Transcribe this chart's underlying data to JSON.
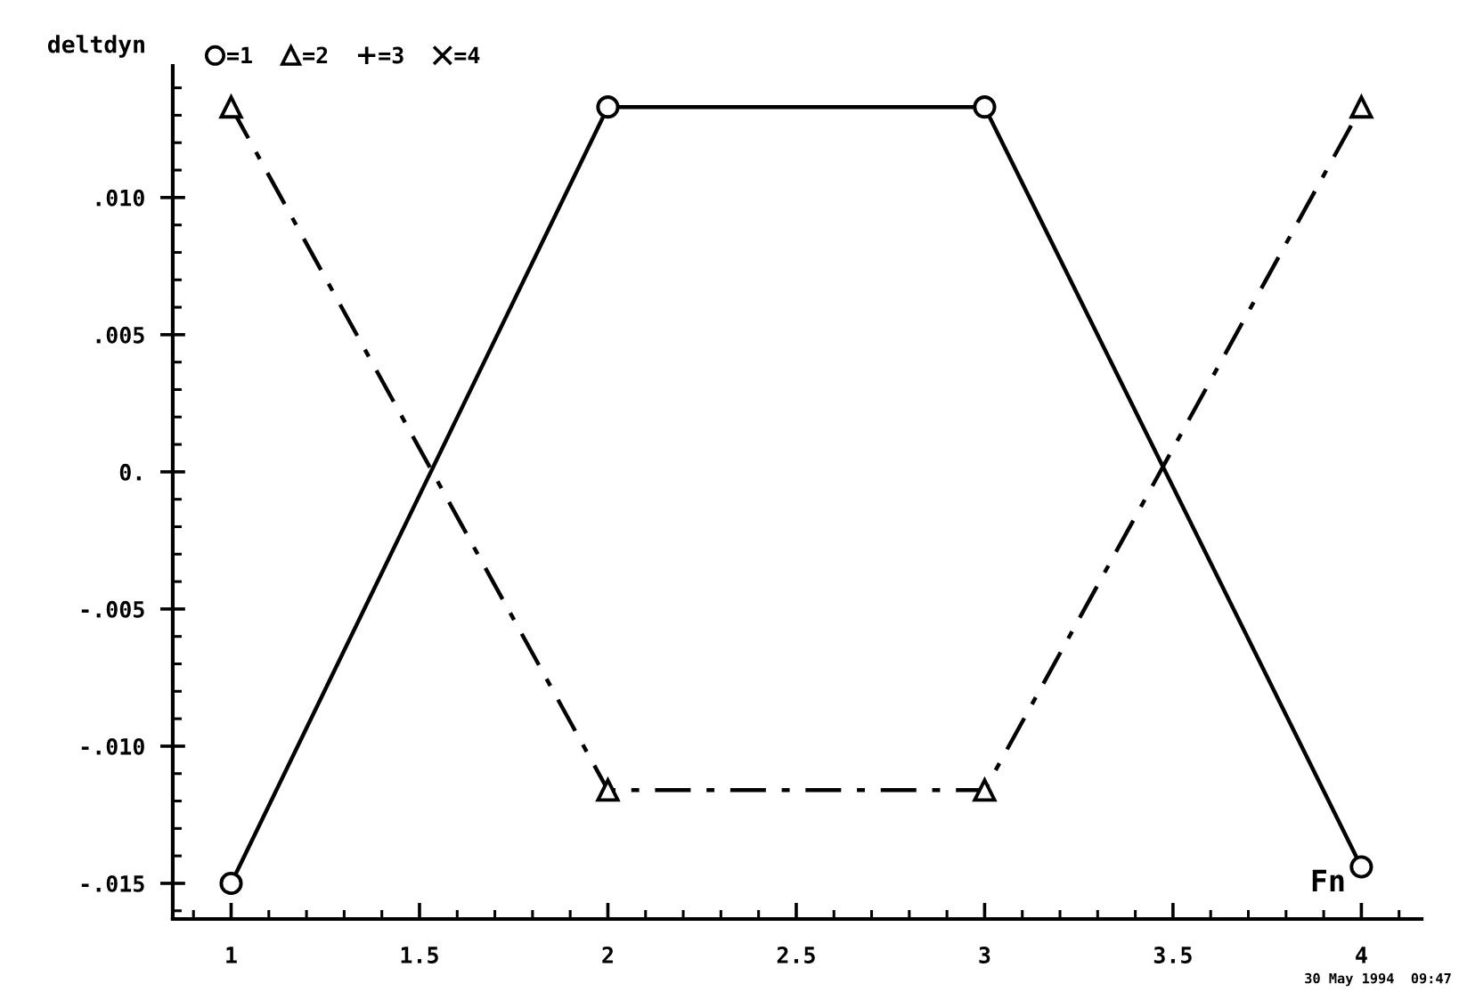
{
  "chart_data": {
    "type": "line",
    "xlabel": "Fn",
    "ylabel": "deltdyn",
    "annotations": [
      "30 May 1994  09:47"
    ],
    "x": [
      1,
      2,
      3,
      4
    ],
    "series": [
      {
        "name": "=1",
        "color": "#000000",
        "marker": "circle",
        "line_style": "solid",
        "values": [
          -0.015,
          0.0133,
          0.0133,
          -0.0144
        ]
      },
      {
        "name": "=2",
        "color": "#000000",
        "marker": "triangle",
        "line_style": "dashed",
        "values": [
          0.0133,
          -0.0116,
          -0.0116,
          0.0133
        ]
      },
      {
        "name": "=3",
        "type": "scatter",
        "color": "#000000",
        "marker": "cross",
        "values": [
          null,
          null,
          null,
          null
        ]
      },
      {
        "name": "=4",
        "type": "scatter",
        "color": "#000000",
        "marker": "x",
        "values": [
          null,
          null,
          null,
          null
        ]
      }
    ],
    "xlim": [
      0.845,
      4.16
    ],
    "xticks": [
      {
        "value": 0.9,
        "label": null
      },
      1,
      {
        "value": 1.1,
        "label": null
      },
      {
        "value": 1.2,
        "label": null
      },
      {
        "value": 1.3,
        "label": null
      },
      {
        "value": 1.4,
        "label": null
      },
      1.5,
      {
        "value": 1.6,
        "label": null
      },
      {
        "value": 1.7,
        "label": null
      },
      {
        "value": 1.8,
        "label": null
      },
      {
        "value": 1.9,
        "label": null
      },
      2,
      {
        "value": 2.1,
        "label": null
      },
      {
        "value": 2.2,
        "label": null
      },
      {
        "value": 2.3,
        "label": null
      },
      {
        "value": 2.4,
        "label": null
      },
      2.5,
      {
        "value": 2.6,
        "label": null
      },
      {
        "value": 2.7,
        "label": null
      },
      {
        "value": 2.8,
        "label": null
      },
      {
        "value": 2.9,
        "label": null
      },
      3,
      {
        "value": 3.1,
        "label": null
      },
      {
        "value": 3.2,
        "label": null
      },
      {
        "value": 3.3,
        "label": null
      },
      {
        "value": 3.4,
        "label": null
      },
      3.5,
      {
        "value": 3.6,
        "label": null
      },
      {
        "value": 3.7,
        "label": null
      },
      {
        "value": 3.8,
        "label": null
      },
      {
        "value": 3.9,
        "label": null
      },
      4,
      {
        "value": 4.1,
        "label": null
      }
    ],
    "ylim": [
      -0.0163,
      0.0148
    ],
    "yticks": [
      {
        "value": -0.016,
        "label": null
      },
      {
        "value": -0.015,
        "label": "-.015"
      },
      {
        "value": -0.014,
        "label": null
      },
      {
        "value": -0.013,
        "label": null
      },
      {
        "value": -0.012,
        "label": null
      },
      {
        "value": -0.011,
        "label": null
      },
      {
        "value": -0.01,
        "label": "-.010"
      },
      {
        "value": -0.009,
        "label": null
      },
      {
        "value": -0.008,
        "label": null
      },
      {
        "value": -0.007,
        "label": null
      },
      {
        "value": -0.006,
        "label": null
      },
      {
        "value": -0.005,
        "label": "-.005"
      },
      {
        "value": -0.004,
        "label": null
      },
      {
        "value": -0.003,
        "label": null
      },
      {
        "value": -0.002,
        "label": null
      },
      {
        "value": -0.001,
        "label": null
      },
      {
        "value": 0,
        "label": "0."
      },
      {
        "value": 0.001,
        "label": null
      },
      {
        "value": 0.002,
        "label": null
      },
      {
        "value": 0.003,
        "label": null
      },
      {
        "value": 0.004,
        "label": null
      },
      {
        "value": 0.005,
        "label": ".005"
      },
      {
        "value": 0.006,
        "label": null
      },
      {
        "value": 0.007,
        "label": null
      },
      {
        "value": 0.008,
        "label": null
      },
      {
        "value": 0.009,
        "label": null
      },
      {
        "value": 0.01,
        "label": ".010"
      },
      {
        "value": 0.011,
        "label": null
      },
      {
        "value": 0.012,
        "label": null
      },
      {
        "value": 0.013,
        "label": null
      },
      {
        "value": 0.014,
        "label": null
      }
    ],
    "legend": "top left"
  }
}
